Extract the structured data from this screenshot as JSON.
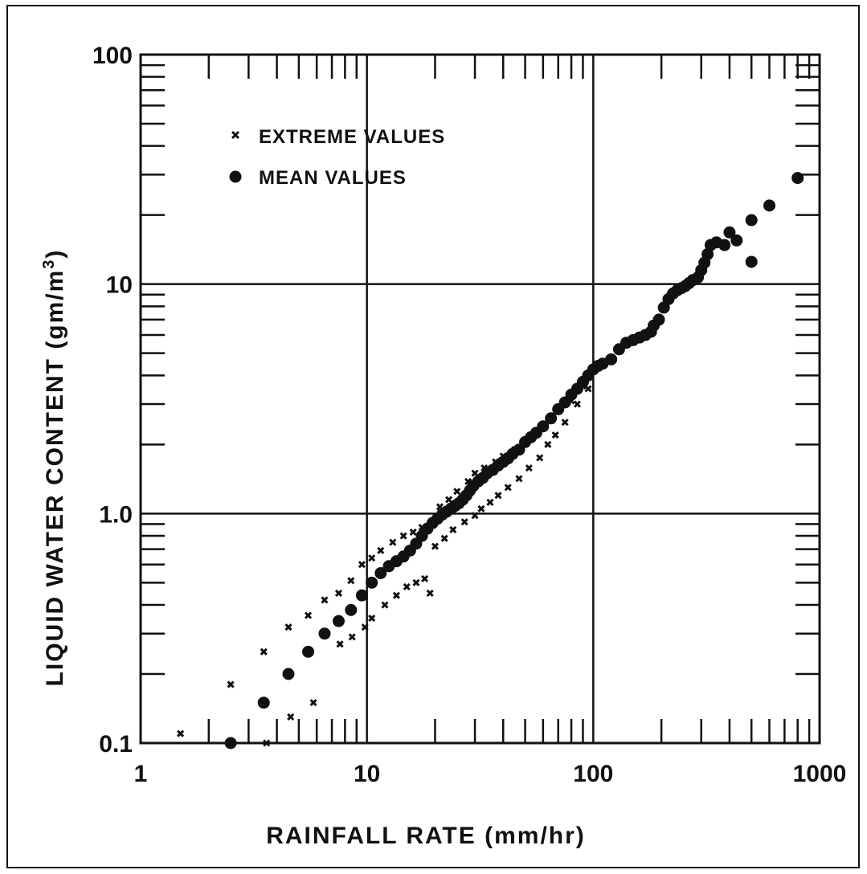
{
  "chart_data": {
    "type": "scatter",
    "xlabel": "RAINFALL  RATE  (mm/hr)",
    "ylabel": "LIQUID WATER CONTENT  (gm/m",
    "ylabel_superscript": "3",
    "ylabel_close": ")",
    "xscale": "log",
    "yscale": "log",
    "xlim": [
      1,
      1000
    ],
    "ylim": [
      0.1,
      100
    ],
    "grid": true,
    "legend_position": "top-left",
    "x_tick_labels": [
      "1",
      "10",
      "100",
      "1000"
    ],
    "y_tick_labels": [
      "0.1",
      "1.0",
      "10",
      "100"
    ],
    "x_tick_values": [
      1,
      10,
      100,
      1000
    ],
    "y_tick_values": [
      0.1,
      1,
      10,
      100
    ],
    "series": [
      {
        "name": "EXTREME VALUES",
        "marker": "x",
        "color": "#111111",
        "points": [
          [
            1.5,
            0.11
          ],
          [
            2.5,
            0.18
          ],
          [
            3.5,
            0.25
          ],
          [
            3.6,
            0.1
          ],
          [
            4.5,
            0.32
          ],
          [
            4.6,
            0.13
          ],
          [
            5.5,
            0.36
          ],
          [
            5.8,
            0.15
          ],
          [
            6.5,
            0.42
          ],
          [
            7.5,
            0.45
          ],
          [
            7.6,
            0.27
          ],
          [
            8.5,
            0.51
          ],
          [
            8.6,
            0.29
          ],
          [
            9.5,
            0.6
          ],
          [
            9.8,
            0.32
          ],
          [
            10.5,
            0.64
          ],
          [
            10.5,
            0.35
          ],
          [
            11.5,
            0.69
          ],
          [
            12,
            0.4
          ],
          [
            13,
            0.75
          ],
          [
            13.5,
            0.44
          ],
          [
            14.5,
            0.8
          ],
          [
            15,
            0.48
          ],
          [
            16,
            0.83
          ],
          [
            16.5,
            0.5
          ],
          [
            17.5,
            0.87
          ],
          [
            18,
            0.52
          ],
          [
            19,
            0.45
          ],
          [
            19.5,
            0.92
          ],
          [
            20,
            0.72
          ],
          [
            21,
            1.07
          ],
          [
            22,
            0.78
          ],
          [
            23,
            1.15
          ],
          [
            24,
            0.85
          ],
          [
            25,
            1.25
          ],
          [
            27,
            0.92
          ],
          [
            28,
            1.38
          ],
          [
            30,
            0.98
          ],
          [
            30,
            1.5
          ],
          [
            32,
            1.05
          ],
          [
            33,
            1.58
          ],
          [
            35,
            1.12
          ],
          [
            37,
            1.68
          ],
          [
            38,
            1.2
          ],
          [
            40,
            1.78
          ],
          [
            42,
            1.3
          ],
          [
            45,
            1.9
          ],
          [
            47,
            1.42
          ],
          [
            50,
            2.05
          ],
          [
            52,
            1.58
          ],
          [
            55,
            2.2
          ],
          [
            58,
            1.75
          ],
          [
            60,
            2.4
          ],
          [
            63,
            2.0
          ],
          [
            65,
            2.65
          ],
          [
            68,
            2.2
          ],
          [
            70,
            2.8
          ],
          [
            75,
            2.5
          ],
          [
            80,
            3.1
          ],
          [
            85,
            3.0
          ],
          [
            90,
            3.6
          ],
          [
            95,
            3.5
          ]
        ]
      },
      {
        "name": "MEAN VALUES",
        "marker": "circle",
        "color": "#111111",
        "points": [
          [
            2.5,
            0.1
          ],
          [
            3.5,
            0.15
          ],
          [
            4.5,
            0.2
          ],
          [
            5.5,
            0.25
          ],
          [
            6.5,
            0.3
          ],
          [
            7.5,
            0.34
          ],
          [
            8.5,
            0.38
          ],
          [
            9.5,
            0.44
          ],
          [
            10.5,
            0.5
          ],
          [
            11.5,
            0.55
          ],
          [
            12.5,
            0.59
          ],
          [
            13.5,
            0.62
          ],
          [
            14.5,
            0.65
          ],
          [
            15.5,
            0.69
          ],
          [
            16.5,
            0.74
          ],
          [
            17.5,
            0.8
          ],
          [
            18.5,
            0.86
          ],
          [
            19.5,
            0.91
          ],
          [
            20.5,
            0.95
          ],
          [
            21.5,
            0.99
          ],
          [
            22.5,
            1.02
          ],
          [
            23.5,
            1.05
          ],
          [
            24.5,
            1.08
          ],
          [
            25.5,
            1.11
          ],
          [
            26.5,
            1.15
          ],
          [
            27.5,
            1.2
          ],
          [
            28.5,
            1.26
          ],
          [
            29.5,
            1.32
          ],
          [
            31,
            1.38
          ],
          [
            32.5,
            1.43
          ],
          [
            34,
            1.5
          ],
          [
            36,
            1.55
          ],
          [
            38,
            1.62
          ],
          [
            40,
            1.68
          ],
          [
            42,
            1.74
          ],
          [
            44,
            1.82
          ],
          [
            47,
            1.9
          ],
          [
            50,
            2.05
          ],
          [
            53,
            2.15
          ],
          [
            56,
            2.25
          ],
          [
            60,
            2.4
          ],
          [
            65,
            2.6
          ],
          [
            70,
            2.85
          ],
          [
            75,
            3.05
          ],
          [
            80,
            3.3
          ],
          [
            85,
            3.5
          ],
          [
            90,
            3.75
          ],
          [
            95,
            4.0
          ],
          [
            100,
            4.25
          ],
          [
            105,
            4.4
          ],
          [
            110,
            4.5
          ],
          [
            120,
            4.7
          ],
          [
            130,
            5.2
          ],
          [
            140,
            5.55
          ],
          [
            150,
            5.7
          ],
          [
            160,
            5.85
          ],
          [
            170,
            6.0
          ],
          [
            180,
            6.2
          ],
          [
            185,
            6.6
          ],
          [
            195,
            7.0
          ],
          [
            205,
            7.9
          ],
          [
            215,
            8.6
          ],
          [
            225,
            9.1
          ],
          [
            235,
            9.4
          ],
          [
            245,
            9.6
          ],
          [
            255,
            9.8
          ],
          [
            265,
            10.1
          ],
          [
            275,
            10.4
          ],
          [
            290,
            10.7
          ],
          [
            300,
            11.5
          ],
          [
            310,
            12.4
          ],
          [
            320,
            13.5
          ],
          [
            330,
            14.8
          ],
          [
            350,
            15.2
          ],
          [
            380,
            14.8
          ],
          [
            400,
            16.8
          ],
          [
            430,
            15.5
          ],
          [
            500,
            12.5
          ],
          [
            500,
            19
          ],
          [
            600,
            22
          ],
          [
            800,
            29
          ]
        ]
      }
    ]
  }
}
